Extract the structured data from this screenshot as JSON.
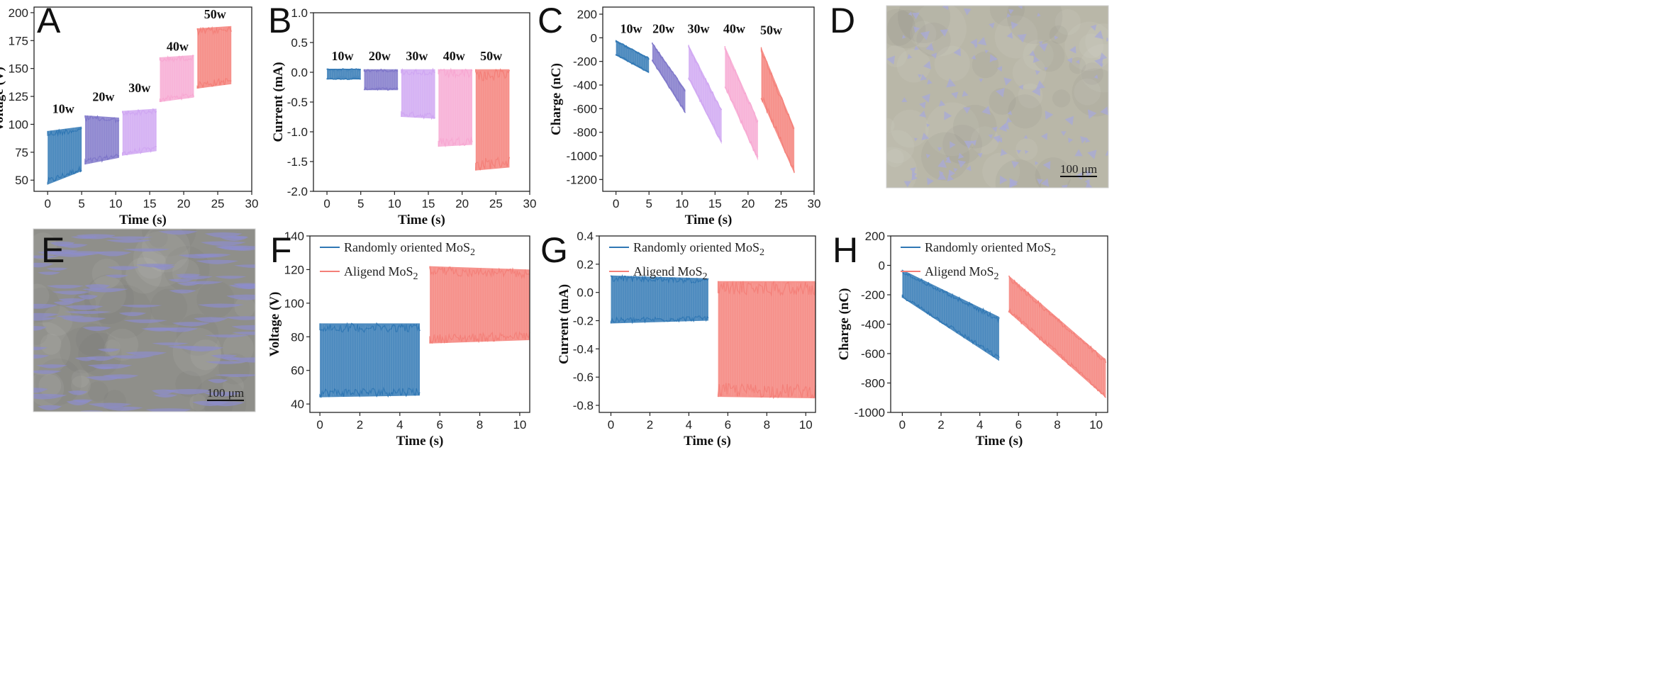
{
  "figure": {
    "microscopy": [
      {
        "id": "D",
        "label": "D",
        "scale_bar": "100 μm",
        "bg": "#b9b7a8",
        "flake": "#a8a9d8",
        "shape": "triangle"
      },
      {
        "id": "E",
        "label": "E",
        "scale_bar": "100 μm",
        "bg": "#8f8f8a",
        "flake": "#8d8dcc",
        "shape": "lens"
      }
    ]
  },
  "chart_data": [
    {
      "id": "A",
      "label": "A",
      "type": "area",
      "xlabel": "Time (s)",
      "ylabel": "Voltage (V)",
      "xlim": [
        -2,
        30
      ],
      "ylim": [
        40,
        205
      ],
      "xticks": [
        0,
        5,
        10,
        15,
        20,
        25,
        30
      ],
      "yticks": [
        50,
        75,
        100,
        125,
        150,
        175,
        200
      ],
      "series": [
        {
          "name": "10w",
          "x": [
            0,
            5.0
          ],
          "low": [
            46,
            58
          ],
          "high": [
            94,
            98
          ],
          "color": "#2f77b4",
          "text": "10w",
          "text_at": [
            2.3,
            110
          ]
        },
        {
          "name": "20w",
          "x": [
            5.5,
            10.5
          ],
          "low": [
            64,
            70
          ],
          "high": [
            108,
            106
          ],
          "color": "#7e76c9",
          "text": "20w",
          "text_at": [
            8.2,
            121
          ]
        },
        {
          "name": "30w",
          "x": [
            11.0,
            16.0
          ],
          "low": [
            72,
            76
          ],
          "high": [
            112,
            114
          ],
          "color": "#cfa6f2",
          "text": "30w",
          "text_at": [
            13.5,
            129
          ]
        },
        {
          "name": "40w",
          "x": [
            16.5,
            21.5
          ],
          "low": [
            120,
            124
          ],
          "high": [
            160,
            162
          ],
          "color": "#f7a8d2",
          "text": "40w",
          "text_at": [
            19.1,
            166
          ]
        },
        {
          "name": "50w",
          "x": [
            22.0,
            27.0
          ],
          "low": [
            132,
            136
          ],
          "high": [
            186,
            188
          ],
          "color": "#f47f78",
          "text": "50w",
          "text_at": [
            24.6,
            195
          ]
        }
      ]
    },
    {
      "id": "B",
      "label": "B",
      "type": "area",
      "xlabel": "Time (s)",
      "ylabel": "Current (mA)",
      "xlim": [
        -2,
        30
      ],
      "ylim": [
        -2.0,
        1.0
      ],
      "xticks": [
        0,
        5,
        10,
        15,
        20,
        25,
        30
      ],
      "yticks": [
        -2.0,
        -1.5,
        -1.0,
        -0.5,
        0.0,
        0.5,
        1.0
      ],
      "series": [
        {
          "name": "10w",
          "x": [
            0,
            5.0
          ],
          "low": [
            -0.12,
            -0.12
          ],
          "high": [
            0.06,
            0.06
          ],
          "color": "#2f77b4",
          "text": "10w",
          "text_at": [
            2.3,
            0.2
          ]
        },
        {
          "name": "20w",
          "x": [
            5.5,
            10.5
          ],
          "low": [
            -0.3,
            -0.3
          ],
          "high": [
            0.05,
            0.05
          ],
          "color": "#7e76c9",
          "text": "20w",
          "text_at": [
            7.8,
            0.2
          ]
        },
        {
          "name": "30w",
          "x": [
            11.0,
            16.0
          ],
          "low": [
            -0.75,
            -0.78
          ],
          "high": [
            0.05,
            0.05
          ],
          "color": "#cfa6f2",
          "text": "30w",
          "text_at": [
            13.3,
            0.2
          ]
        },
        {
          "name": "40w",
          "x": [
            16.5,
            21.5
          ],
          "low": [
            -1.25,
            -1.22
          ],
          "high": [
            0.05,
            0.05
          ],
          "color": "#f7a8d2",
          "text": "40w",
          "text_at": [
            18.8,
            0.2
          ]
        },
        {
          "name": "50w",
          "x": [
            22.0,
            27.0
          ],
          "low": [
            -1.65,
            -1.6
          ],
          "high": [
            0.05,
            0.05
          ],
          "color": "#f47f78",
          "text": "50w",
          "text_at": [
            24.3,
            0.2
          ]
        }
      ]
    },
    {
      "id": "C",
      "label": "C",
      "type": "area",
      "xlabel": "Time (s)",
      "ylabel": "Charge (nC)",
      "xlim": [
        -2,
        30
      ],
      "ylim": [
        -1300,
        260
      ],
      "xticks": [
        0,
        5,
        10,
        15,
        20,
        25,
        30
      ],
      "yticks": [
        -1200,
        -1000,
        -800,
        -600,
        -400,
        -200,
        0,
        200
      ],
      "series": [
        {
          "name": "10w",
          "x": [
            0,
            5.0
          ],
          "low": [
            -150,
            -300
          ],
          "high": [
            -20,
            -170
          ],
          "color": "#2f77b4",
          "text": "10w",
          "text_at": [
            2.3,
            40
          ]
        },
        {
          "name": "20w",
          "x": [
            5.5,
            10.5
          ],
          "low": [
            -200,
            -640
          ],
          "high": [
            -40,
            -440
          ],
          "color": "#7e76c9",
          "text": "20w",
          "text_at": [
            7.2,
            40
          ]
        },
        {
          "name": "30w",
          "x": [
            11.0,
            16.0
          ],
          "low": [
            -350,
            -900
          ],
          "high": [
            -60,
            -610
          ],
          "color": "#cfa6f2",
          "text": "30w",
          "text_at": [
            12.5,
            40
          ]
        },
        {
          "name": "40w",
          "x": [
            16.5,
            21.5
          ],
          "low": [
            -420,
            -1040
          ],
          "high": [
            -70,
            -700
          ],
          "color": "#f7a8d2",
          "text": "40w",
          "text_at": [
            17.9,
            40
          ]
        },
        {
          "name": "50w",
          "x": [
            22.0,
            27.0
          ],
          "low": [
            -520,
            -1150
          ],
          "high": [
            -80,
            -760
          ],
          "color": "#f47f78",
          "text": "50w",
          "text_at": [
            23.5,
            30
          ]
        }
      ]
    },
    {
      "id": "F",
      "label": "F",
      "type": "area",
      "xlabel": "Time (s)",
      "ylabel": "Voltage (V)",
      "xlim": [
        -0.5,
        10.5
      ],
      "ylim": [
        35,
        140
      ],
      "xticks": [
        0,
        2,
        4,
        6,
        8,
        10
      ],
      "yticks": [
        40,
        60,
        80,
        100,
        120,
        140
      ],
      "legend": [
        {
          "name": "Randomly oriented MoS",
          "sub": "2",
          "color": "#2f77b4"
        },
        {
          "name": "Aligend MoS",
          "sub": "2",
          "color": "#f47f78"
        }
      ],
      "series": [
        {
          "name": "Randomly oriented MoS2",
          "x": [
            0,
            5.0
          ],
          "low": [
            44,
            45
          ],
          "high": [
            88,
            88
          ],
          "color": "#2f77b4"
        },
        {
          "name": "Aligend MoS2",
          "x": [
            5.5,
            10.5
          ],
          "low": [
            76,
            78
          ],
          "high": [
            122,
            120
          ],
          "color": "#f47f78"
        }
      ]
    },
    {
      "id": "G",
      "label": "G",
      "type": "area",
      "xlabel": "Time (s)",
      "ylabel": "Current (mA)",
      "xlim": [
        -0.6,
        10.5
      ],
      "ylim": [
        -0.85,
        0.4
      ],
      "xticks": [
        0,
        2,
        4,
        6,
        8,
        10
      ],
      "yticks": [
        -0.8,
        -0.6,
        -0.4,
        -0.2,
        0.0,
        0.2,
        0.4
      ],
      "legend": [
        {
          "name": "Randomly oriented MoS",
          "sub": "2",
          "color": "#2f77b4"
        },
        {
          "name": "Aligend MoS",
          "sub": "2",
          "color": "#f47f78"
        }
      ],
      "series": [
        {
          "name": "Randomly oriented MoS2",
          "x": [
            0,
            5.0
          ],
          "low": [
            -0.22,
            -0.2
          ],
          "high": [
            0.12,
            0.1
          ],
          "color": "#2f77b4"
        },
        {
          "name": "Aligend MoS2",
          "x": [
            5.5,
            10.5
          ],
          "low": [
            -0.74,
            -0.75
          ],
          "high": [
            0.08,
            0.08
          ],
          "color": "#f47f78"
        }
      ]
    },
    {
      "id": "H",
      "label": "H",
      "type": "area",
      "xlabel": "Time (s)",
      "ylabel": "Charge (nC)",
      "xlim": [
        -0.6,
        10.6
      ],
      "ylim": [
        -1000,
        200
      ],
      "xticks": [
        0,
        2,
        4,
        6,
        8,
        10
      ],
      "yticks": [
        -1000,
        -800,
        -600,
        -400,
        -200,
        0,
        200
      ],
      "legend": [
        {
          "name": "Randomly oriented MoS",
          "sub": "2",
          "color": "#2f77b4"
        },
        {
          "name": "Aligend MoS",
          "sub": "2",
          "color": "#f47f78"
        }
      ],
      "series": [
        {
          "name": "Randomly oriented MoS2",
          "x": [
            0,
            5.0
          ],
          "low": [
            -220,
            -650
          ],
          "high": [
            -30,
            -350
          ],
          "color": "#2f77b4"
        },
        {
          "name": "Aligend MoS2",
          "x": [
            5.5,
            10.5
          ],
          "low": [
            -320,
            -900
          ],
          "high": [
            -70,
            -640
          ],
          "color": "#f47f78"
        }
      ]
    }
  ]
}
